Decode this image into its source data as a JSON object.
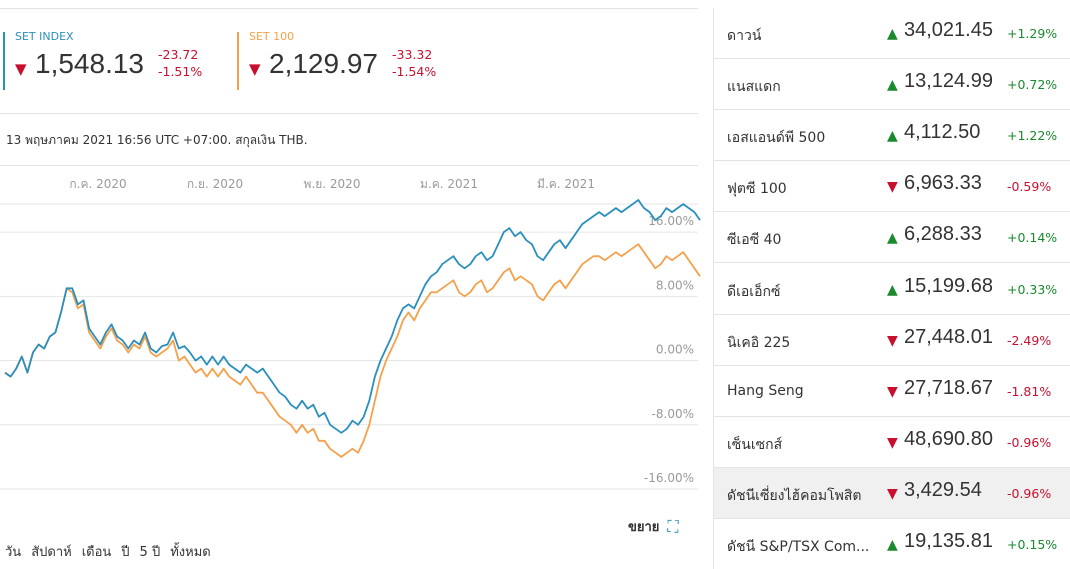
{
  "indices": [
    {
      "name": "SET INDEX",
      "price": "1,548.13",
      "change": "-23.72",
      "change_pct": "-1.51%",
      "direction": "down",
      "color": "#2a8fbd"
    },
    {
      "name": "SET 100",
      "price": "2,129.97",
      "change": "-33.32",
      "change_pct": "-1.54%",
      "direction": "down",
      "color": "#f5a04a"
    }
  ],
  "as_of_text": "13 พฤษภาคม 2021 16:56 UTC +07:00. สกุลเงิน THB.",
  "expand_label": "ขยาย",
  "range_tabs": [
    "วัน",
    "สัปดาห์",
    "เดือน",
    "ปี",
    "5 ปี",
    "ทั้งหมด"
  ],
  "colors": {
    "up": "#1a8a2e",
    "down": "#c8102e",
    "set_index": "#2a8fbd",
    "set_100": "#f5a04a"
  },
  "chart_data": {
    "type": "line",
    "x_tick_labels": [
      "ก.ค. 2020",
      "ก.ย. 2020",
      "พ.ย. 2020",
      "ม.ค. 2021",
      "มี.ค. 2021"
    ],
    "y_tick_labels": [
      "16.00%",
      "8.00%",
      "0.00%",
      "-8.00%",
      "-16.00%"
    ],
    "y_ticks": [
      16,
      8,
      0,
      -8,
      -16
    ],
    "ylim": [
      -17.5,
      21.5
    ],
    "unit": "%",
    "series": [
      {
        "name": "SET INDEX",
        "color": "#2a8fbd",
        "values": [
          -1.5,
          -2,
          -1,
          0.5,
          -1.5,
          1,
          2,
          1.5,
          3,
          3.5,
          6,
          9,
          9,
          7,
          7.5,
          4,
          3,
          2,
          3.5,
          4.5,
          3,
          2.5,
          1.5,
          2.5,
          2,
          3.5,
          1.5,
          1,
          1.8,
          2,
          3.5,
          1.5,
          1.8,
          1,
          0,
          0.5,
          -0.5,
          0.5,
          -0.5,
          0.5,
          -0.5,
          -1,
          -1.5,
          -0.5,
          -1,
          -1.5,
          -1,
          -2,
          -3,
          -4,
          -4.5,
          -5.5,
          -6,
          -5,
          -6,
          -5.5,
          -7,
          -6.5,
          -8,
          -8.5,
          -9,
          -8.5,
          -7.5,
          -8,
          -7,
          -5,
          -2,
          0,
          1.5,
          3,
          5,
          6.5,
          7,
          6.5,
          8,
          9.5,
          10.5,
          11,
          12,
          12.5,
          13,
          12,
          11.5,
          12,
          13,
          13.5,
          12.5,
          13,
          14.5,
          16,
          16.5,
          15.5,
          16,
          15,
          14.5,
          13,
          12.5,
          13.5,
          14.5,
          15,
          14,
          15,
          16,
          17,
          17.5,
          18,
          18.5,
          18,
          18.5,
          19,
          18.5,
          19,
          19.5,
          20,
          19,
          18.5,
          17.5,
          18,
          19,
          18.5,
          19,
          19.5,
          19,
          18.5,
          17.5
        ]
      },
      {
        "name": "SET 100",
        "color": "#f5a04a",
        "values": [
          -1.5,
          -2,
          -1,
          0.5,
          -1.5,
          1,
          2,
          1.5,
          3,
          3.5,
          6,
          9,
          8.5,
          6.5,
          7,
          3.5,
          2.5,
          1.5,
          3,
          4,
          2.5,
          2,
          1,
          2,
          1.5,
          3,
          1,
          0.5,
          1,
          1.5,
          2.5,
          0,
          0.5,
          -0.5,
          -1.5,
          -1,
          -2,
          -1,
          -2,
          -1,
          -2,
          -2.5,
          -3,
          -2,
          -3,
          -4,
          -4,
          -5,
          -6,
          -7,
          -7.5,
          -8,
          -9,
          -8,
          -9,
          -8.5,
          -10,
          -10,
          -11,
          -11.5,
          -12,
          -11.5,
          -11,
          -11.5,
          -10,
          -8,
          -5,
          -2,
          0,
          1.5,
          3,
          5,
          6,
          5,
          6.5,
          7.5,
          8.5,
          8.5,
          9,
          9.5,
          10,
          8.5,
          8,
          8.5,
          9.5,
          10,
          8.5,
          9,
          10,
          11,
          11.5,
          10,
          10.5,
          10,
          9.5,
          8,
          7.5,
          8.5,
          9.5,
          10,
          9,
          10,
          11,
          12,
          12.5,
          13,
          13,
          12.5,
          13,
          13.5,
          13,
          13.5,
          14,
          14.5,
          13.5,
          12.5,
          11.5,
          12,
          13,
          12.5,
          13,
          13.5,
          12.5,
          11.5,
          10.5
        ]
      }
    ]
  },
  "world_indices": [
    {
      "name": "ดาวน์",
      "value": "34,021.45",
      "change_pct": "+1.29%",
      "direction": "up",
      "highlighted": false
    },
    {
      "name": "แนสแดก",
      "value": "13,124.99",
      "change_pct": "+0.72%",
      "direction": "up",
      "highlighted": false
    },
    {
      "name": "เอสแอนด์พี 500",
      "value": "4,112.50",
      "change_pct": "+1.22%",
      "direction": "up",
      "highlighted": false
    },
    {
      "name": "ฟุตซี 100",
      "value": "6,963.33",
      "change_pct": "-0.59%",
      "direction": "down",
      "highlighted": false
    },
    {
      "name": "ซีเอซี 40",
      "value": "6,288.33",
      "change_pct": "+0.14%",
      "direction": "up",
      "highlighted": false
    },
    {
      "name": "ดีเอเอ็กซ์",
      "value": "15,199.68",
      "change_pct": "+0.33%",
      "direction": "up",
      "highlighted": false
    },
    {
      "name": "นิเคอิ 225",
      "value": "27,448.01",
      "change_pct": "-2.49%",
      "direction": "down",
      "highlighted": false
    },
    {
      "name": "Hang Seng",
      "value": "27,718.67",
      "change_pct": "-1.81%",
      "direction": "down",
      "highlighted": false
    },
    {
      "name": "เซ็นเซกส์",
      "value": "48,690.80",
      "change_pct": "-0.96%",
      "direction": "down",
      "highlighted": false
    },
    {
      "name": "ดัชนีเซี่ยงไฮ้คอมโพสิต",
      "value": "3,429.54",
      "change_pct": "-0.96%",
      "direction": "down",
      "highlighted": true
    },
    {
      "name": "ดัชนี S&P/TSX Com...",
      "value": "19,135.81",
      "change_pct": "+0.15%",
      "direction": "up",
      "highlighted": false
    }
  ]
}
